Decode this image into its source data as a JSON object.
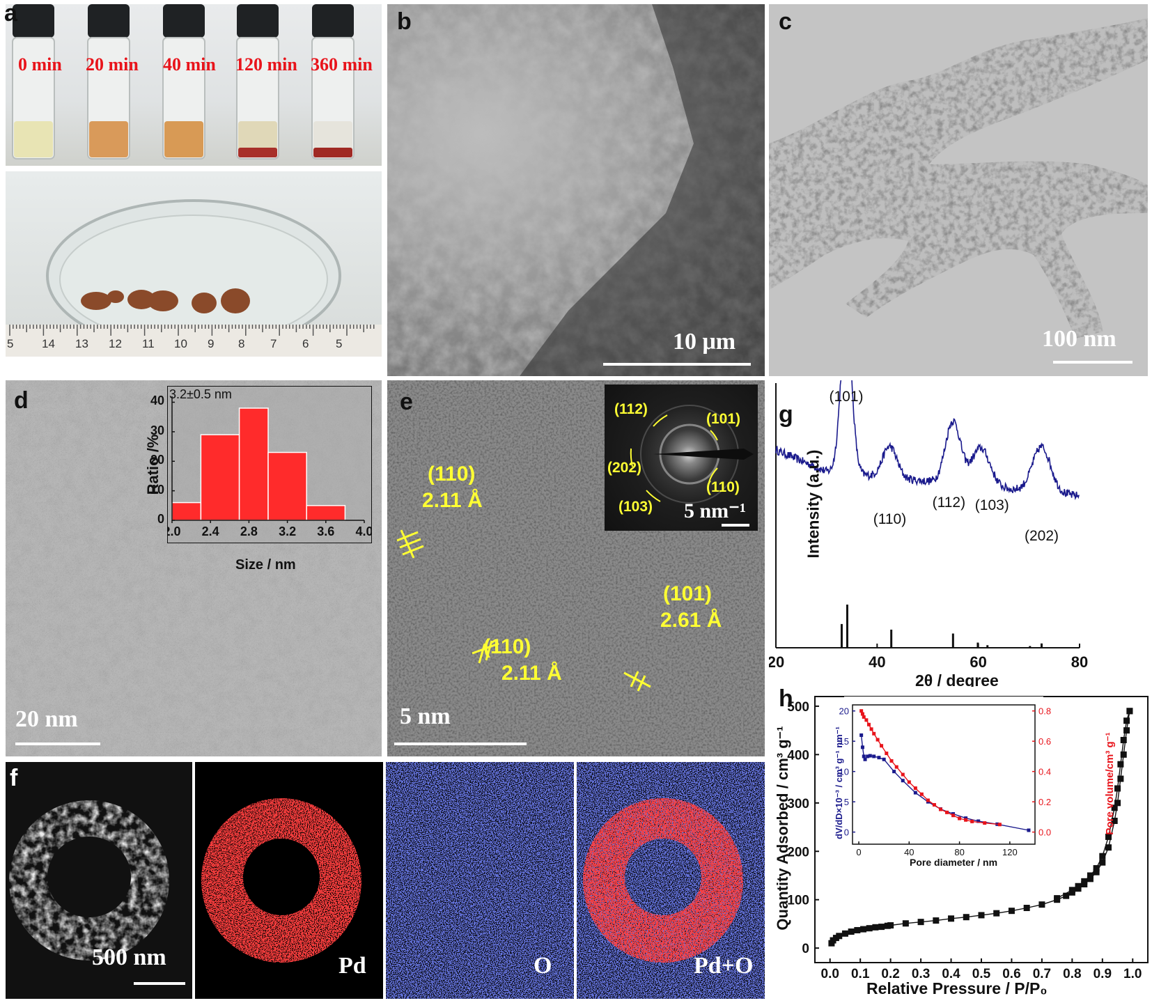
{
  "panels": {
    "a": {
      "label": "a",
      "vials": [
        "0 min",
        "20 min",
        "40 min",
        "120 min",
        "360 min"
      ],
      "ruler_numbers": [
        "5",
        "14",
        "13",
        "12",
        "11",
        "10",
        "9",
        "8",
        "7",
        "6",
        "5"
      ]
    },
    "b": {
      "label": "b",
      "scale": "10 μm"
    },
    "c": {
      "label": "c",
      "scale": "100 nm"
    },
    "d": {
      "label": "d",
      "scale": "20 nm"
    },
    "e": {
      "label": "e",
      "scale": "5 nm",
      "fringes": [
        {
          "plane": "(110)",
          "spacing": "2.11 Å"
        },
        {
          "plane": "(110)",
          "spacing": "2.11 Å"
        },
        {
          "plane": "(101)",
          "spacing": "2.61 Å"
        }
      ],
      "saed": {
        "rings": [
          "(112)",
          "(101)",
          "(202)",
          "(110)",
          "(103)"
        ],
        "scale": "5 nm⁻¹"
      }
    },
    "f": {
      "label": "f",
      "scale": "500 nm",
      "maps": [
        "Pd",
        "O",
        "Pd+O"
      ]
    },
    "g": {
      "label": "g"
    },
    "h": {
      "label": "h"
    }
  },
  "chart_data": [
    {
      "id": "d-inset",
      "type": "bar",
      "annotation": "3.2±0.5 nm",
      "xlabel": "Size / nm",
      "ylabel": "Ratio /%",
      "bin_edges": [
        2.0,
        2.4,
        2.8,
        3.2,
        3.6,
        4.0
      ],
      "bins": [
        [
          2.0,
          2.3
        ],
        [
          2.3,
          2.7
        ],
        [
          2.7,
          3.0
        ],
        [
          3.0,
          3.4
        ],
        [
          3.4,
          3.8
        ]
      ],
      "values": [
        6,
        29,
        38,
        23,
        5
      ],
      "xticks": [
        "2.0",
        "2.4",
        "2.8",
        "3.2",
        "3.6",
        "4.0"
      ],
      "yticks": [
        "0",
        "10",
        "20",
        "30",
        "40"
      ],
      "xlim": [
        2.0,
        4.0
      ],
      "ylim": [
        0,
        42
      ],
      "color": "#ff2b2b"
    },
    {
      "id": "g-xrd",
      "type": "line",
      "xlabel": "2θ / degree",
      "ylabel": "Intensity (a.u.)",
      "xlim": [
        20,
        80
      ],
      "xticks": [
        "20",
        "40",
        "60",
        "80"
      ],
      "line_color": "#1a1a8c",
      "peaks": [
        {
          "label": "(101)",
          "x": 33.9
        },
        {
          "label": "(110)",
          "x": 42.5
        },
        {
          "label": "(112)",
          "x": 55.0
        },
        {
          "label": "(103)",
          "x": 60.5
        },
        {
          "label": "(202)",
          "x": 72.5
        }
      ],
      "reference_sticks": [
        {
          "x": 33.0,
          "h": 0.55
        },
        {
          "x": 34.1,
          "h": 1.0
        },
        {
          "x": 42.8,
          "h": 0.42
        },
        {
          "x": 55.0,
          "h": 0.33
        },
        {
          "x": 59.9,
          "h": 0.12
        },
        {
          "x": 61.8,
          "h": 0.06
        },
        {
          "x": 70.2,
          "h": 0.04
        },
        {
          "x": 72.5,
          "h": 0.1
        }
      ]
    },
    {
      "id": "h-isotherm",
      "type": "scatter",
      "xlabel": "Relative Pressure / P/P₀",
      "ylabel": "Quantity Adsorbed / cm³ g⁻¹",
      "xlim": [
        -0.05,
        1.05
      ],
      "ylim": [
        -30,
        520
      ],
      "xticks": [
        "0.0",
        "0.1",
        "0.2",
        "0.3",
        "0.4",
        "0.5",
        "0.6",
        "0.7",
        "0.8",
        "0.9",
        "1.0"
      ],
      "yticks": [
        "0",
        "100",
        "200",
        "300",
        "400",
        "500"
      ],
      "series": [
        {
          "x": [
            0.005,
            0.01,
            0.02,
            0.03,
            0.05,
            0.07,
            0.09,
            0.11,
            0.13,
            0.15,
            0.17,
            0.19,
            0.2,
            0.25,
            0.3,
            0.35,
            0.4,
            0.45,
            0.5,
            0.55,
            0.6,
            0.65,
            0.7,
            0.75,
            0.78,
            0.8,
            0.82,
            0.84,
            0.86,
            0.88,
            0.9,
            0.92,
            0.94,
            0.95,
            0.96,
            0.97,
            0.98,
            0.99
          ],
          "y": [
            10,
            16,
            21,
            25,
            30,
            34,
            37,
            39,
            41,
            43,
            44,
            46,
            47,
            51,
            54,
            57,
            61,
            64,
            68,
            72,
            77,
            83,
            90,
            100,
            108,
            115,
            123,
            132,
            143,
            157,
            177,
            208,
            263,
            300,
            350,
            400,
            450,
            490
          ]
        },
        {
          "x": [
            0.99,
            0.98,
            0.97,
            0.96,
            0.95,
            0.94,
            0.92,
            0.9,
            0.88,
            0.86,
            0.84,
            0.82,
            0.8,
            0.75
          ],
          "y": [
            490,
            470,
            430,
            380,
            330,
            290,
            230,
            190,
            165,
            150,
            138,
            128,
            120,
            103
          ]
        }
      ]
    },
    {
      "id": "h-inset",
      "type": "line",
      "xlabel": "Pore diameter / nm",
      "ylabel": "dV/dD×10⁻³ / cm³ g⁻¹ nm⁻¹",
      "y2label": "Pore volume/cm³ g⁻¹",
      "xlim": [
        -5,
        140
      ],
      "ylim": [
        -2,
        21
      ],
      "y2lim": [
        -0.08,
        0.84
      ],
      "xticks": [
        "0",
        "40",
        "80",
        "120"
      ],
      "yticks": [
        "0",
        "5",
        "10",
        "15",
        "20"
      ],
      "y2ticks": [
        "0.0",
        "0.2",
        "0.4",
        "0.6",
        "0.8"
      ],
      "series": [
        {
          "name": "dV/dD",
          "color": "#1a1a8c",
          "axis": "left",
          "x": [
            2,
            3,
            4,
            5,
            7,
            9,
            12,
            16,
            20,
            28,
            35,
            45,
            55,
            65,
            75,
            85,
            95,
            110,
            135
          ],
          "y": [
            16,
            14,
            12.5,
            12,
            12.5,
            12.6,
            12.5,
            12.3,
            12,
            10,
            8.5,
            6.5,
            5,
            3.8,
            3,
            2.3,
            1.8,
            1.3,
            0.3
          ]
        },
        {
          "name": "Pore volume",
          "color": "#e8141b",
          "axis": "right",
          "x": [
            2,
            3,
            4,
            6,
            8,
            10,
            12,
            15,
            18,
            22,
            26,
            30,
            35,
            40,
            45,
            50,
            55,
            60,
            65,
            70,
            75,
            80,
            85,
            90,
            100,
            112
          ],
          "y": [
            0.8,
            0.78,
            0.76,
            0.74,
            0.71,
            0.68,
            0.65,
            0.61,
            0.57,
            0.52,
            0.47,
            0.43,
            0.38,
            0.33,
            0.29,
            0.25,
            0.21,
            0.18,
            0.15,
            0.13,
            0.11,
            0.09,
            0.08,
            0.07,
            0.06,
            0.05
          ]
        }
      ]
    }
  ]
}
